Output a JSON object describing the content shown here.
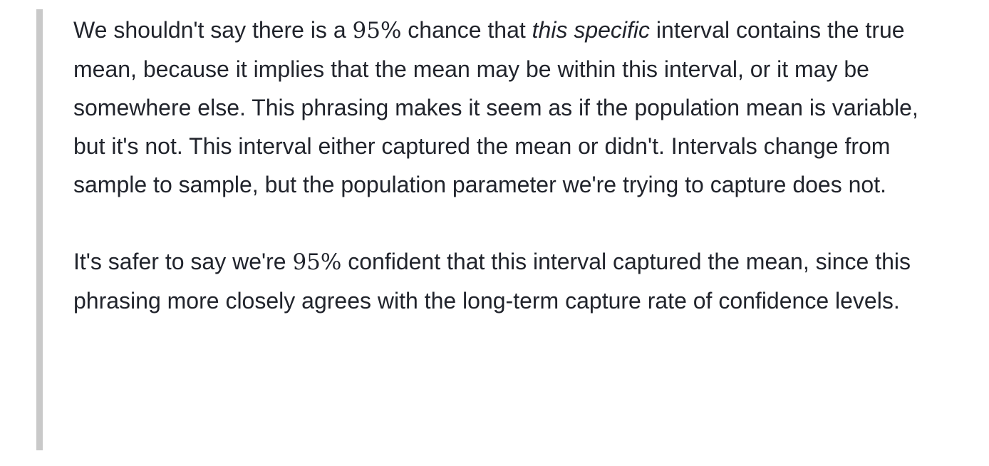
{
  "paragraphs": [
    {
      "p1_a": "We shouldn't say there is a ",
      "p1_math": "95%",
      "p1_b": " chance that ",
      "p1_em": "this specific",
      "p1_c": " interval contains the true mean, because it implies that the mean may be within this interval, or it may be somewhere else. This phrasing makes it seem as if the population mean is variable, but it's not. This interval either captured the mean or didn't. Intervals change from sample to sample, but the population parameter we're trying to capture does not."
    },
    {
      "p2_a": "It's safer to say we're ",
      "p2_math": "95%",
      "p2_b": " confident that this interval captured the mean, since this phrasing more closely agrees with the long-term capture rate of confidence levels."
    }
  ],
  "colors": {
    "text": "#21242c",
    "quote_bar": "#c9c9c9",
    "background": "#ffffff"
  }
}
